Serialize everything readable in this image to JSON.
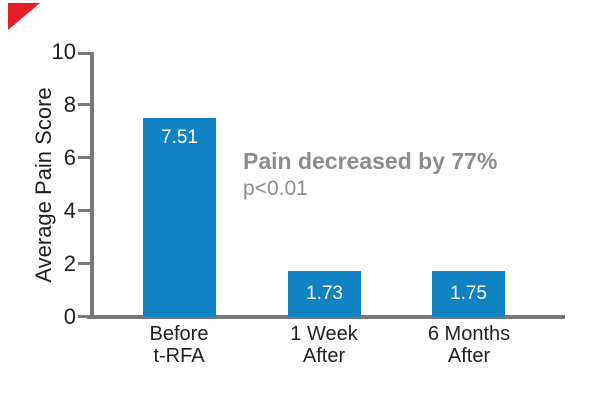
{
  "chart_data": {
    "type": "bar",
    "title": "",
    "ylabel": "Average Pain Score",
    "xlabel": "",
    "ylim": [
      0,
      10
    ],
    "yticks": [
      0,
      2,
      4,
      6,
      8,
      10
    ],
    "grid": false,
    "legend": false,
    "categories": [
      [
        "Before",
        "t-RFA"
      ],
      [
        "1 Week",
        "After"
      ],
      [
        "6 Months",
        "After"
      ]
    ],
    "values": [
      7.51,
      1.73,
      1.75
    ],
    "bar_labels": [
      "7.51",
      "1.73",
      "1.75"
    ],
    "annotation": {
      "line1": "Pain decreased by 77%",
      "line2": "p<0.01"
    }
  },
  "colors": {
    "bar_blue": "#1081c2",
    "axis_gray": "#77787b",
    "annotation_gray": "#8d8d90",
    "text_dark": "#231f20",
    "value_label": "#ffffff",
    "corner_red": "#e31e26",
    "background": "#ffffff"
  }
}
